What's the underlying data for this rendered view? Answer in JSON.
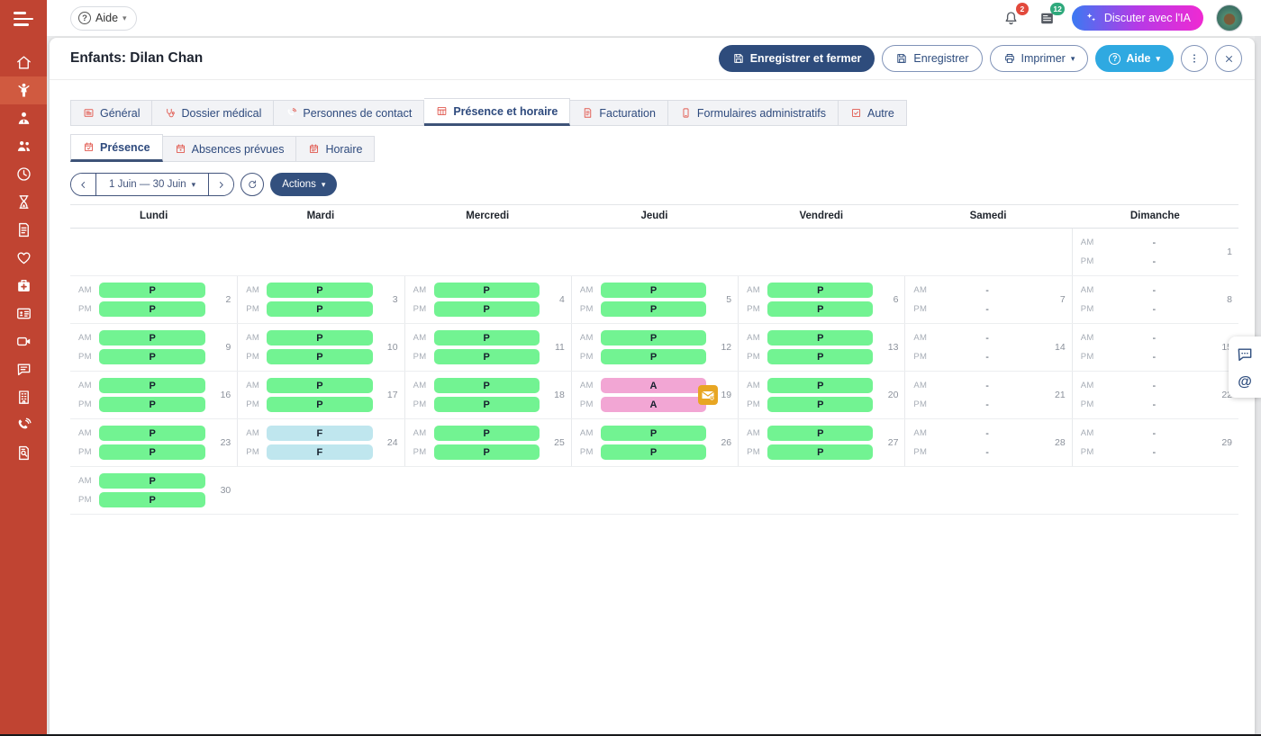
{
  "topbar": {
    "help_label": "Aide",
    "bell_badge": "2",
    "news_badge": "12",
    "chat_ai_label": "Discuter avec l'IA"
  },
  "header": {
    "title": "Enfants: Dilan Chan",
    "save_close_label": "Enregistrer et fermer",
    "save_label": "Enregistrer",
    "print_label": "Imprimer",
    "help_label": "Aide"
  },
  "sidebar": {
    "items": [
      {
        "name": "home",
        "active": false
      },
      {
        "name": "child",
        "active": true
      },
      {
        "name": "user-tie",
        "active": false
      },
      {
        "name": "users",
        "active": false
      },
      {
        "name": "clock",
        "active": false
      },
      {
        "name": "hourglass",
        "active": false
      },
      {
        "name": "invoice",
        "active": false
      },
      {
        "name": "heart",
        "active": false
      },
      {
        "name": "medkit",
        "active": false
      },
      {
        "name": "id-card",
        "active": false
      },
      {
        "name": "video",
        "active": false
      },
      {
        "name": "comment",
        "active": false
      },
      {
        "name": "building",
        "active": false
      },
      {
        "name": "phone",
        "active": false
      },
      {
        "name": "file-search",
        "active": false
      }
    ]
  },
  "tabs": {
    "active": "Présence et horaire",
    "items": [
      {
        "label": "Général",
        "icon": "card"
      },
      {
        "label": "Dossier médical",
        "icon": "stethoscope"
      },
      {
        "label": "Personnes de contact",
        "icon": "phone"
      },
      {
        "label": "Présence et horaire",
        "icon": "table"
      },
      {
        "label": "Facturation",
        "icon": "invoice"
      },
      {
        "label": "Formulaires administratifs",
        "icon": "mobile"
      },
      {
        "label": "Autre",
        "icon": "check-square"
      }
    ]
  },
  "subtabs": {
    "active": "Présence",
    "items": [
      {
        "label": "Présence",
        "icon": "calendar-check"
      },
      {
        "label": "Absences prévues",
        "icon": "calendar-dot"
      },
      {
        "label": "Horaire",
        "icon": "calendar-lines"
      }
    ]
  },
  "toolbar": {
    "date_range": "1 Juin — 30 Juin",
    "actions_label": "Actions"
  },
  "calendar": {
    "day_headers": [
      "Lundi",
      "Mardi",
      "Mercredi",
      "Jeudi",
      "Vendredi",
      "Samedi",
      "Dimanche"
    ],
    "period_labels": {
      "am": "AM",
      "pm": "PM"
    },
    "status_colors": {
      "P": "#72f392",
      "A": "#f2a6d4",
      "F": "#bfe6ee"
    },
    "weeks": [
      [
        null,
        null,
        null,
        null,
        null,
        null,
        {
          "day": 1,
          "am": "-",
          "pm": "-"
        }
      ],
      [
        {
          "day": 2,
          "am": "P",
          "pm": "P"
        },
        {
          "day": 3,
          "am": "P",
          "pm": "P"
        },
        {
          "day": 4,
          "am": "P",
          "pm": "P"
        },
        {
          "day": 5,
          "am": "P",
          "pm": "P"
        },
        {
          "day": 6,
          "am": "P",
          "pm": "P"
        },
        {
          "day": 7,
          "am": "-",
          "pm": "-"
        },
        {
          "day": 8,
          "am": "-",
          "pm": "-"
        }
      ],
      [
        {
          "day": 9,
          "am": "P",
          "pm": "P"
        },
        {
          "day": 10,
          "am": "P",
          "pm": "P"
        },
        {
          "day": 11,
          "am": "P",
          "pm": "P"
        },
        {
          "day": 12,
          "am": "P",
          "pm": "P"
        },
        {
          "day": 13,
          "am": "P",
          "pm": "P"
        },
        {
          "day": 14,
          "am": "-",
          "pm": "-"
        },
        {
          "day": 15,
          "am": "-",
          "pm": "-"
        }
      ],
      [
        {
          "day": 16,
          "am": "P",
          "pm": "P"
        },
        {
          "day": 17,
          "am": "P",
          "pm": "P"
        },
        {
          "day": 18,
          "am": "P",
          "pm": "P"
        },
        {
          "day": 19,
          "am": "A",
          "pm": "A",
          "flag": "mail"
        },
        {
          "day": 20,
          "am": "P",
          "pm": "P"
        },
        {
          "day": 21,
          "am": "-",
          "pm": "-"
        },
        {
          "day": 22,
          "am": "-",
          "pm": "-"
        }
      ],
      [
        {
          "day": 23,
          "am": "P",
          "pm": "P"
        },
        {
          "day": 24,
          "am": "F",
          "pm": "F"
        },
        {
          "day": 25,
          "am": "P",
          "pm": "P"
        },
        {
          "day": 26,
          "am": "P",
          "pm": "P"
        },
        {
          "day": 27,
          "am": "P",
          "pm": "P"
        },
        {
          "day": 28,
          "am": "-",
          "pm": "-"
        },
        {
          "day": 29,
          "am": "-",
          "pm": "-"
        }
      ],
      [
        {
          "day": 30,
          "am": "P",
          "pm": "P"
        },
        null,
        null,
        null,
        null,
        null,
        null
      ]
    ]
  },
  "floating": {
    "at_label": "@"
  }
}
